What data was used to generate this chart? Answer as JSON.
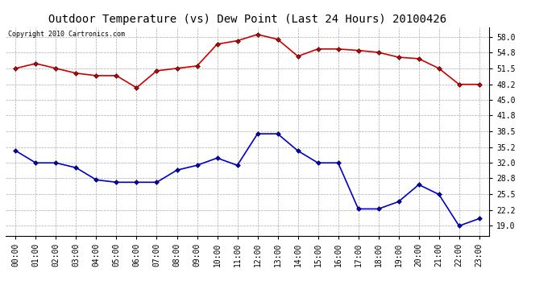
{
  "title": "Outdoor Temperature (vs) Dew Point (Last 24 Hours) 20100426",
  "copyright": "Copyright 2010 Cartronics.com",
  "x_labels": [
    "00:00",
    "01:00",
    "02:00",
    "03:00",
    "04:00",
    "05:00",
    "06:00",
    "07:00",
    "08:00",
    "09:00",
    "10:00",
    "11:00",
    "12:00",
    "13:00",
    "14:00",
    "15:00",
    "16:00",
    "17:00",
    "18:00",
    "19:00",
    "20:00",
    "21:00",
    "22:00",
    "23:00"
  ],
  "temp_data": [
    51.5,
    52.5,
    51.5,
    50.5,
    50.0,
    50.0,
    47.5,
    51.0,
    51.5,
    52.0,
    56.5,
    57.2,
    58.5,
    57.5,
    54.0,
    55.5,
    55.5,
    55.2,
    54.8,
    53.8,
    53.5,
    51.5,
    48.2,
    48.2
  ],
  "dew_data": [
    34.5,
    32.0,
    32.0,
    31.0,
    28.5,
    28.0,
    28.0,
    28.0,
    30.5,
    31.5,
    33.0,
    31.5,
    38.0,
    38.0,
    34.5,
    32.0,
    32.0,
    22.5,
    22.5,
    24.0,
    27.5,
    25.5,
    19.0,
    20.5
  ],
  "temp_color": "#cc0000",
  "dew_color": "#0000cc",
  "bg_color": "#ffffff",
  "plot_bg_color": "#ffffff",
  "grid_color": "#aaaaaa",
  "yticks": [
    19.0,
    22.2,
    25.5,
    28.8,
    32.0,
    35.2,
    38.5,
    41.8,
    45.0,
    48.2,
    51.5,
    54.8,
    58.0
  ],
  "ymin": 17.0,
  "ymax": 60.0,
  "title_fontsize": 10,
  "copyright_fontsize": 6,
  "tick_fontsize": 7,
  "marker": "D",
  "markersize": 3,
  "linewidth": 1.2
}
